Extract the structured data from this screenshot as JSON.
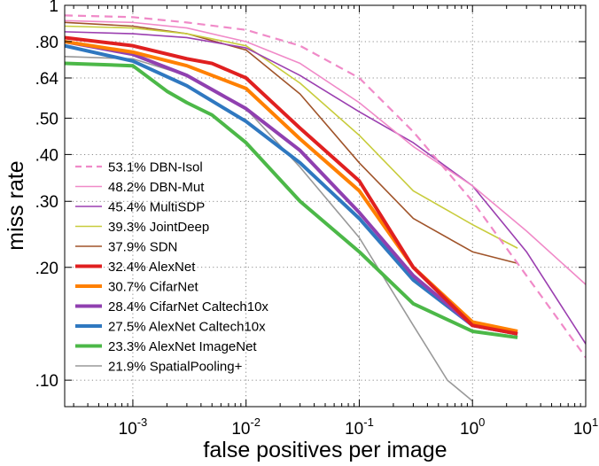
{
  "chart_data": {
    "type": "line",
    "title": "",
    "xlabel": "false positives per image",
    "ylabel": "miss rate",
    "x_scale": "log",
    "y_scale": "log",
    "xlim": [
      0.00025,
      10
    ],
    "ylim": [
      0.085,
      1
    ],
    "grid": true,
    "legend_position": "bottom-left",
    "x_ticks": [
      {
        "value": 0.001,
        "base": "10",
        "exp": "-3"
      },
      {
        "value": 0.01,
        "base": "10",
        "exp": "-2"
      },
      {
        "value": 0.1,
        "base": "10",
        "exp": "-1"
      },
      {
        "value": 1,
        "base": "10",
        "exp": "0"
      },
      {
        "value": 10,
        "base": "10",
        "exp": "1"
      }
    ],
    "y_ticks": [
      {
        "value": 1,
        "label": "1"
      },
      {
        "value": 0.8,
        "label": ".80"
      },
      {
        "value": 0.64,
        "label": ".64"
      },
      {
        "value": 0.5,
        "label": ".50"
      },
      {
        "value": 0.4,
        "label": ".40"
      },
      {
        "value": 0.3,
        "label": ".30"
      },
      {
        "value": 0.2,
        "label": ".20"
      },
      {
        "value": 0.1,
        "label": ".10"
      }
    ],
    "series": [
      {
        "name": "53.1% DBN-Isol",
        "color": "#f08ac8",
        "width": 2.2,
        "dash": "9 6",
        "x": [
          0.00025,
          0.001,
          0.003,
          0.01,
          0.03,
          0.1,
          0.3,
          1,
          3,
          10
        ],
        "y": [
          0.94,
          0.93,
          0.9,
          0.86,
          0.78,
          0.64,
          0.46,
          0.3,
          0.19,
          0.115
        ]
      },
      {
        "name": "48.2% DBN-Mut",
        "color": "#f08ac8",
        "width": 1.6,
        "dash": "",
        "x": [
          0.00025,
          0.001,
          0.003,
          0.01,
          0.03,
          0.1,
          0.3,
          1,
          3,
          10
        ],
        "y": [
          0.91,
          0.9,
          0.87,
          0.8,
          0.7,
          0.55,
          0.42,
          0.33,
          0.25,
          0.18
        ]
      },
      {
        "name": "45.4% MultiSDP",
        "color": "#9b3fb0",
        "width": 1.6,
        "dash": "",
        "x": [
          0.00025,
          0.001,
          0.003,
          0.01,
          0.03,
          0.1,
          0.3,
          1,
          3,
          10
        ],
        "y": [
          0.85,
          0.84,
          0.82,
          0.77,
          0.65,
          0.52,
          0.43,
          0.33,
          0.22,
          0.125
        ]
      },
      {
        "name": "39.3% JointDeep",
        "color": "#c8cc3c",
        "width": 1.6,
        "dash": "",
        "x": [
          0.00025,
          0.001,
          0.003,
          0.01,
          0.03,
          0.1,
          0.3,
          1,
          2.5
        ],
        "y": [
          0.88,
          0.87,
          0.84,
          0.78,
          0.62,
          0.45,
          0.32,
          0.26,
          0.225
        ]
      },
      {
        "name": "37.9% SDN",
        "color": "#a0542a",
        "width": 1.6,
        "dash": "",
        "x": [
          0.00025,
          0.001,
          0.003,
          0.01,
          0.03,
          0.1,
          0.3,
          1,
          2.5
        ],
        "y": [
          0.9,
          0.88,
          0.84,
          0.76,
          0.58,
          0.38,
          0.27,
          0.22,
          0.205
        ]
      },
      {
        "name": "32.4% AlexNet",
        "color": "#e02020",
        "width": 4,
        "dash": "",
        "x": [
          0.00025,
          0.001,
          0.003,
          0.005,
          0.01,
          0.03,
          0.1,
          0.3,
          1,
          2.5
        ],
        "y": [
          0.82,
          0.78,
          0.72,
          0.7,
          0.64,
          0.47,
          0.34,
          0.2,
          0.14,
          0.133
        ]
      },
      {
        "name": "30.7% CifarNet",
        "color": "#ff8000",
        "width": 4,
        "dash": "",
        "x": [
          0.00025,
          0.001,
          0.003,
          0.01,
          0.03,
          0.1,
          0.3,
          1,
          2.5
        ],
        "y": [
          0.8,
          0.75,
          0.69,
          0.6,
          0.44,
          0.32,
          0.2,
          0.143,
          0.135
        ]
      },
      {
        "name": "28.4% CifarNet  Caltech10x",
        "color": "#9040b0",
        "width": 4,
        "dash": "",
        "x": [
          0.00025,
          0.001,
          0.003,
          0.01,
          0.03,
          0.1,
          0.3,
          1,
          2.5
        ],
        "y": [
          0.8,
          0.74,
          0.65,
          0.53,
          0.41,
          0.28,
          0.19,
          0.14,
          0.133
        ]
      },
      {
        "name": "27.5% AlexNet  Caltech10x",
        "color": "#2f78c0",
        "width": 4,
        "dash": "",
        "x": [
          0.00025,
          0.001,
          0.003,
          0.01,
          0.03,
          0.1,
          0.3,
          1,
          2.5
        ],
        "y": [
          0.78,
          0.71,
          0.61,
          0.49,
          0.38,
          0.27,
          0.185,
          0.14,
          0.133
        ]
      },
      {
        "name": "23.3% AlexNet  ImageNet",
        "color": "#4cb848",
        "width": 4,
        "dash": "",
        "x": [
          0.00025,
          0.001,
          0.002,
          0.003,
          0.005,
          0.01,
          0.03,
          0.1,
          0.3,
          1,
          2.5
        ],
        "y": [
          0.7,
          0.69,
          0.59,
          0.55,
          0.51,
          0.43,
          0.3,
          0.22,
          0.16,
          0.135,
          0.13
        ]
      },
      {
        "name": "21.9% SpatialPooling+",
        "color": "#999999",
        "width": 1.6,
        "dash": "",
        "x": [
          0.00025,
          0.001,
          0.003,
          0.01,
          0.03,
          0.1,
          0.3,
          0.6,
          1
        ],
        "y": [
          0.73,
          0.72,
          0.65,
          0.53,
          0.37,
          0.24,
          0.14,
          0.1,
          0.088
        ]
      }
    ]
  }
}
